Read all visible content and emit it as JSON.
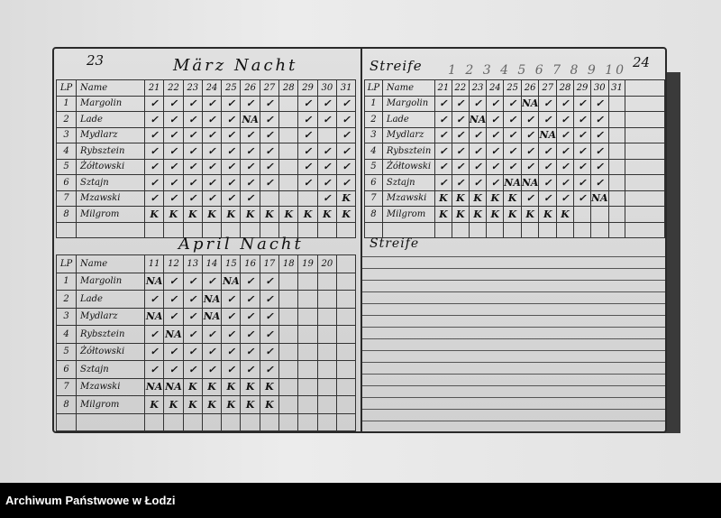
{
  "left_page": {
    "page_number": "23",
    "march": {
      "title": "März Nacht",
      "lp_header": "LP",
      "name_header": "Name",
      "days": [
        "21",
        "22",
        "23",
        "24",
        "25",
        "26",
        "27",
        "28",
        "29",
        "30",
        "31"
      ],
      "rows": [
        {
          "lp": "1",
          "name": "Margolin",
          "marks": [
            "✓",
            "✓",
            "✓",
            "✓",
            "✓",
            "✓",
            "✓",
            "",
            "✓",
            "✓",
            "✓"
          ]
        },
        {
          "lp": "2",
          "name": "Lade",
          "marks": [
            "✓",
            "✓",
            "✓",
            "✓",
            "✓",
            "NA",
            "✓",
            "",
            "✓",
            "✓",
            "✓"
          ]
        },
        {
          "lp": "3",
          "name": "Mydlarz",
          "marks": [
            "✓",
            "✓",
            "✓",
            "✓",
            "✓",
            "✓",
            "✓",
            "",
            "✓",
            "",
            "✓"
          ]
        },
        {
          "lp": "4",
          "name": "Rybsztein",
          "marks": [
            "✓",
            "✓",
            "✓",
            "✓",
            "✓",
            "✓",
            "✓",
            "",
            "✓",
            "✓",
            "✓"
          ]
        },
        {
          "lp": "5",
          "name": "Żółtowski",
          "marks": [
            "✓",
            "✓",
            "✓",
            "✓",
            "✓",
            "✓",
            "✓",
            "",
            "✓",
            "✓",
            "✓"
          ]
        },
        {
          "lp": "6",
          "name": "Sztajn",
          "marks": [
            "✓",
            "✓",
            "✓",
            "✓",
            "✓",
            "✓",
            "✓",
            "",
            "✓",
            "✓",
            "✓"
          ]
        },
        {
          "lp": "7",
          "name": "Mzawski",
          "marks": [
            "✓",
            "✓",
            "✓",
            "✓",
            "✓",
            "✓",
            "",
            "",
            "",
            "✓",
            "K"
          ]
        },
        {
          "lp": "8",
          "name": "Milgrom",
          "marks": [
            "K",
            "K",
            "K",
            "K",
            "K",
            "K",
            "K",
            "K",
            "K",
            "K",
            "K"
          ]
        }
      ]
    },
    "april": {
      "title": "April Nacht",
      "lp_header": "LP",
      "name_header": "Name",
      "days": [
        "11",
        "12",
        "13",
        "14",
        "15",
        "16",
        "17",
        "18",
        "19",
        "20",
        ""
      ],
      "rows": [
        {
          "lp": "1",
          "name": "Margolin",
          "marks": [
            "NA",
            "✓",
            "✓",
            "✓",
            "NA",
            "✓",
            "✓",
            "",
            "",
            "",
            ""
          ]
        },
        {
          "lp": "2",
          "name": "Lade",
          "marks": [
            "✓",
            "✓",
            "✓",
            "NA",
            "✓",
            "✓",
            "✓",
            "",
            "",
            "",
            ""
          ]
        },
        {
          "lp": "3",
          "name": "Mydlarz",
          "marks": [
            "NA",
            "✓",
            "✓",
            "NA",
            "✓",
            "✓",
            "✓",
            "",
            "",
            "",
            ""
          ]
        },
        {
          "lp": "4",
          "name": "Rybsztein",
          "marks": [
            "✓",
            "NA",
            "✓",
            "✓",
            "✓",
            "✓",
            "✓",
            "",
            "",
            "",
            ""
          ]
        },
        {
          "lp": "5",
          "name": "Żółtowski",
          "marks": [
            "✓",
            "✓",
            "✓",
            "✓",
            "✓",
            "✓",
            "✓",
            "",
            "",
            "",
            ""
          ]
        },
        {
          "lp": "6",
          "name": "Sztajn",
          "marks": [
            "✓",
            "✓",
            "✓",
            "✓",
            "✓",
            "✓",
            "✓",
            "",
            "",
            "",
            ""
          ]
        },
        {
          "lp": "7",
          "name": "Mzawski",
          "marks": [
            "NA",
            "NA",
            "K",
            "K",
            "K",
            "K",
            "K",
            "",
            "",
            "",
            ""
          ]
        },
        {
          "lp": "8",
          "name": "Milgrom",
          "marks": [
            "K",
            "K",
            "K",
            "K",
            "K",
            "K",
            "K",
            "",
            "",
            "",
            ""
          ]
        }
      ]
    }
  },
  "right_page": {
    "page_number": "24",
    "streife": {
      "title": "Streife",
      "overhead_numbers": "1 2 3 4 5 6 7 8 9 10",
      "lp_header": "LP",
      "name_header": "Name",
      "days": [
        "21",
        "22",
        "23",
        "24",
        "25",
        "26",
        "27",
        "28",
        "29",
        "30",
        "31"
      ],
      "rows": [
        {
          "lp": "1",
          "name": "Margolin",
          "marks": [
            "✓",
            "✓",
            "✓",
            "✓",
            "✓",
            "NA",
            "✓",
            "✓",
            "✓",
            "✓",
            ""
          ]
        },
        {
          "lp": "2",
          "name": "Lade",
          "marks": [
            "✓",
            "✓",
            "NA",
            "✓",
            "✓",
            "✓",
            "✓",
            "✓",
            "✓",
            "✓",
            ""
          ]
        },
        {
          "lp": "3",
          "name": "Mydlarz",
          "marks": [
            "✓",
            "✓",
            "✓",
            "✓",
            "✓",
            "✓",
            "NA",
            "✓",
            "✓",
            "✓",
            ""
          ]
        },
        {
          "lp": "4",
          "name": "Rybsztein",
          "marks": [
            "✓",
            "✓",
            "✓",
            "✓",
            "✓",
            "✓",
            "✓",
            "✓",
            "✓",
            "✓",
            ""
          ]
        },
        {
          "lp": "5",
          "name": "Żółtowski",
          "marks": [
            "✓",
            "✓",
            "✓",
            "✓",
            "✓",
            "✓",
            "✓",
            "✓",
            "✓",
            "✓",
            ""
          ]
        },
        {
          "lp": "6",
          "name": "Sztajn",
          "marks": [
            "✓",
            "✓",
            "✓",
            "✓",
            "NA",
            "NA",
            "✓",
            "✓",
            "✓",
            "✓",
            ""
          ]
        },
        {
          "lp": "7",
          "name": "Mzawski",
          "marks": [
            "K",
            "K",
            "K",
            "K",
            "K",
            "✓",
            "✓",
            "✓",
            "✓",
            "NA",
            ""
          ]
        },
        {
          "lp": "8",
          "name": "Milgrom",
          "marks": [
            "K",
            "K",
            "K",
            "K",
            "K",
            "K",
            "K",
            "K",
            "",
            "",
            ""
          ]
        }
      ]
    },
    "streife2_title": "Streife"
  },
  "footer": {
    "text": "Archiwum Państwowe w Łodzi"
  }
}
